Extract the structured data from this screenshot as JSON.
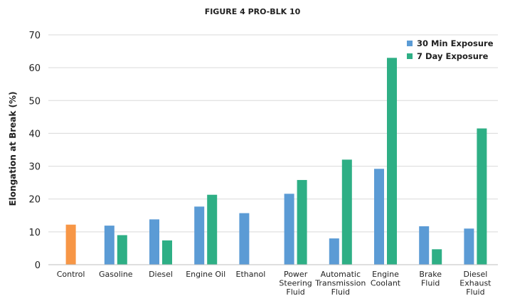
{
  "chart_data": {
    "type": "bar",
    "title": "FIGURE 4 PRO-BLK 10",
    "ylabel": "Elongation at Break (%)",
    "xlabel": "",
    "ylim": [
      0,
      70
    ],
    "yticks": [
      0,
      10,
      20,
      30,
      40,
      50,
      60,
      70
    ],
    "grid": true,
    "legend_position": "top-right",
    "categories": [
      [
        "Control"
      ],
      [
        "Gasoline"
      ],
      [
        "Diesel"
      ],
      [
        "Engine Oil"
      ],
      [
        "Ethanol"
      ],
      [
        "Power",
        "Steering",
        "Fluid"
      ],
      [
        "Automatic",
        "Transmission",
        "Fluid"
      ],
      [
        "Engine",
        "Coolant"
      ],
      [
        "Brake",
        "Fluid"
      ],
      [
        "Diesel",
        "Exhaust",
        "Fluid"
      ]
    ],
    "control": {
      "value": 12.2,
      "color": "#F79646"
    },
    "series": [
      {
        "name": "30 Min Exposure",
        "color": "#5B9BD5",
        "values": [
          null,
          11.9,
          13.8,
          17.7,
          15.7,
          21.6,
          8.0,
          29.2,
          11.7,
          11.0
        ]
      },
      {
        "name": "7 Day Exposure",
        "color": "#2EAF85",
        "values": [
          null,
          9.0,
          7.4,
          21.3,
          null,
          25.8,
          32.0,
          63.0,
          4.7,
          41.5
        ]
      }
    ]
  }
}
